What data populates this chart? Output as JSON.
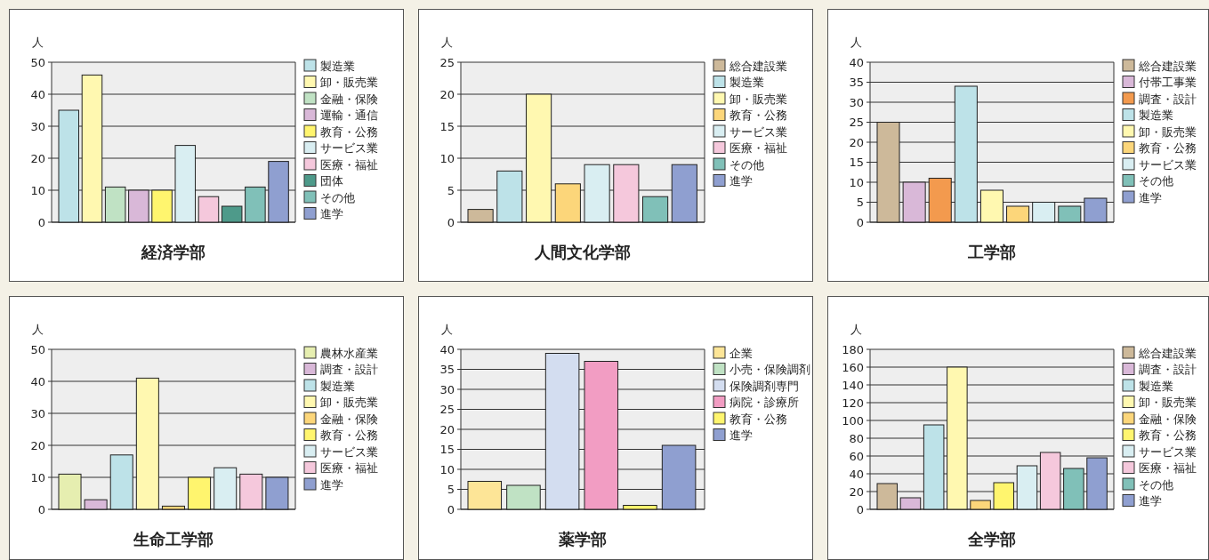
{
  "chart_data": [
    {
      "type": "bar",
      "title": "経済学部",
      "ylabel": "人",
      "stacked": true,
      "categories": [
        null,
        null,
        null,
        null,
        null,
        null,
        null,
        null,
        null,
        null
      ],
      "series": [
        {
          "name": "製造業",
          "color": "#bde2e8",
          "values": [
            35,
            null,
            null,
            null,
            null,
            null,
            null,
            null,
            null,
            null
          ]
        },
        {
          "name": "卸・販売業",
          "color": "#fff8b0",
          "values": [
            null,
            46,
            null,
            null,
            null,
            null,
            null,
            null,
            null,
            null
          ]
        },
        {
          "name": "金融・保険",
          "color": "#c0e2c4",
          "values": [
            null,
            null,
            11,
            null,
            null,
            null,
            null,
            null,
            null,
            null
          ]
        },
        {
          "name": "運輸・通信",
          "color": "#d9b8d8",
          "values": [
            null,
            null,
            null,
            10,
            null,
            null,
            null,
            null,
            null,
            null
          ]
        },
        {
          "name": "教育・公務",
          "color": "#fff56e",
          "values": [
            null,
            null,
            null,
            null,
            10,
            null,
            null,
            null,
            null,
            null
          ]
        },
        {
          "name": "サービス業",
          "color": "#d9eef2",
          "values": [
            null,
            null,
            null,
            null,
            null,
            24,
            null,
            null,
            null,
            null
          ]
        },
        {
          "name": "医療・福祉",
          "color": "#f5c8dc",
          "values": [
            null,
            null,
            null,
            null,
            null,
            null,
            8,
            null,
            null,
            null
          ]
        },
        {
          "name": "団体",
          "color": "#4e9a8a",
          "values": [
            null,
            null,
            null,
            null,
            null,
            null,
            null,
            5,
            null,
            null
          ]
        },
        {
          "name": "その他",
          "color": "#80c0b8",
          "values": [
            null,
            null,
            null,
            null,
            null,
            null,
            null,
            null,
            11,
            null
          ]
        },
        {
          "name": "進学",
          "color": "#8f9fd0",
          "values": [
            null,
            null,
            null,
            null,
            null,
            null,
            null,
            null,
            null,
            19
          ]
        }
      ],
      "ylim": [
        0,
        50
      ],
      "yticks": [
        0,
        10,
        20,
        30,
        40,
        50
      ],
      "grid": "y",
      "legend": "right",
      "tick_labels": "y"
    },
    {
      "type": "bar",
      "title": "人間文化学部",
      "ylabel": "人",
      "stacked": true,
      "categories": [
        null,
        null,
        null,
        null,
        null,
        null,
        null,
        null
      ],
      "series": [
        {
          "name": "総合建設業",
          "color": "#cdb99a",
          "values": [
            2,
            null,
            null,
            null,
            null,
            null,
            null,
            null
          ]
        },
        {
          "name": "製造業",
          "color": "#bde2e8",
          "values": [
            null,
            8,
            null,
            null,
            null,
            null,
            null,
            null
          ]
        },
        {
          "name": "卸・販売業",
          "color": "#fff8b0",
          "values": [
            null,
            null,
            20,
            null,
            null,
            null,
            null,
            null
          ]
        },
        {
          "name": "教育・公務",
          "color": "#fcd67a",
          "values": [
            null,
            null,
            null,
            6,
            null,
            null,
            null,
            null
          ]
        },
        {
          "name": "サービス業",
          "color": "#d9eef2",
          "values": [
            null,
            null,
            null,
            null,
            9,
            null,
            null,
            null
          ]
        },
        {
          "name": "医療・福祉",
          "color": "#f5c8dc",
          "values": [
            null,
            null,
            null,
            null,
            null,
            9,
            null,
            null
          ]
        },
        {
          "name": "その他",
          "color": "#80c0b8",
          "values": [
            null,
            null,
            null,
            null,
            null,
            null,
            4,
            null
          ]
        },
        {
          "name": "進学",
          "color": "#8f9fd0",
          "values": [
            null,
            null,
            null,
            null,
            null,
            null,
            null,
            9
          ]
        }
      ],
      "ylim": [
        0,
        25
      ],
      "yticks": [
        0,
        5,
        10,
        15,
        20,
        25
      ],
      "grid": "y",
      "legend": "right",
      "tick_labels": "y"
    },
    {
      "type": "bar",
      "title": "工学部",
      "ylabel": "人",
      "stacked": true,
      "categories": [
        null,
        null,
        null,
        null,
        null,
        null,
        null,
        null,
        null
      ],
      "series": [
        {
          "name": "総合建設業",
          "color": "#cdb99a",
          "values": [
            25,
            null,
            null,
            null,
            null,
            null,
            null,
            null,
            null
          ]
        },
        {
          "name": "付帯工事業",
          "color": "#d9b8d8",
          "values": [
            null,
            10,
            null,
            null,
            null,
            null,
            null,
            null,
            null
          ]
        },
        {
          "name": "調査・設計",
          "color": "#f39a4e",
          "values": [
            null,
            null,
            11,
            null,
            null,
            null,
            null,
            null,
            null
          ]
        },
        {
          "name": "製造業",
          "color": "#bde2e8",
          "values": [
            null,
            null,
            null,
            34,
            null,
            null,
            null,
            null,
            null
          ]
        },
        {
          "name": "卸・販売業",
          "color": "#fff8b0",
          "values": [
            null,
            null,
            null,
            null,
            8,
            null,
            null,
            null,
            null
          ]
        },
        {
          "name": "教育・公務",
          "color": "#fcd67a",
          "values": [
            null,
            null,
            null,
            null,
            null,
            4,
            null,
            null,
            null
          ]
        },
        {
          "name": "サービス業",
          "color": "#d9eef2",
          "values": [
            null,
            null,
            null,
            null,
            null,
            null,
            5,
            null,
            null
          ]
        },
        {
          "name": "その他",
          "color": "#80c0b8",
          "values": [
            null,
            null,
            null,
            null,
            null,
            null,
            null,
            4,
            null
          ]
        },
        {
          "name": "進学",
          "color": "#8f9fd0",
          "values": [
            null,
            null,
            null,
            null,
            null,
            null,
            null,
            null,
            6
          ]
        }
      ],
      "ylim": [
        0,
        40
      ],
      "yticks": [
        0,
        5,
        10,
        15,
        20,
        25,
        30,
        35,
        40
      ],
      "grid": "y",
      "legend": "right",
      "tick_labels": "y"
    },
    {
      "type": "bar",
      "title": "生命工学部",
      "ylabel": "人",
      "stacked": true,
      "categories": [
        null,
        null,
        null,
        null,
        null,
        null,
        null,
        null,
        null
      ],
      "series": [
        {
          "name": "農林水産業",
          "color": "#e6eeb0",
          "values": [
            11,
            null,
            null,
            null,
            null,
            null,
            null,
            null,
            null
          ]
        },
        {
          "name": "調査・設計",
          "color": "#d9b8d8",
          "values": [
            null,
            3,
            null,
            null,
            null,
            null,
            null,
            null,
            null
          ]
        },
        {
          "name": "製造業",
          "color": "#bde2e8",
          "values": [
            null,
            null,
            17,
            null,
            null,
            null,
            null,
            null,
            null
          ]
        },
        {
          "name": "卸・販売業",
          "color": "#fff8b0",
          "values": [
            null,
            null,
            null,
            41,
            null,
            null,
            null,
            null,
            null
          ]
        },
        {
          "name": "金融・保険",
          "color": "#fcd67a",
          "values": [
            null,
            null,
            null,
            null,
            1,
            null,
            null,
            null,
            null
          ]
        },
        {
          "name": "教育・公務",
          "color": "#fff56e",
          "values": [
            null,
            null,
            null,
            null,
            null,
            10,
            null,
            null,
            null
          ]
        },
        {
          "name": "サービス業",
          "color": "#d9eef2",
          "values": [
            null,
            null,
            null,
            null,
            null,
            null,
            13,
            null,
            null
          ]
        },
        {
          "name": "医療・福祉",
          "color": "#f5c8dc",
          "values": [
            null,
            null,
            null,
            null,
            null,
            null,
            null,
            11,
            null
          ]
        },
        {
          "name": "進学",
          "color": "#8f9fd0",
          "values": [
            null,
            null,
            null,
            null,
            null,
            null,
            null,
            null,
            10
          ]
        }
      ],
      "ylim": [
        0,
        50
      ],
      "yticks": [
        0,
        10,
        20,
        30,
        40,
        50
      ],
      "grid": "y",
      "legend": "right",
      "tick_labels": "y"
    },
    {
      "type": "bar",
      "title": "薬学部",
      "ylabel": "人",
      "stacked": true,
      "categories": [
        null,
        null,
        null,
        null,
        null,
        null
      ],
      "series": [
        {
          "name": "企業",
          "color": "#fde597",
          "values": [
            7,
            null,
            null,
            null,
            null,
            null
          ]
        },
        {
          "name": "小売・保険調剤",
          "color": "#c0e2c4",
          "values": [
            null,
            6,
            null,
            null,
            null,
            null
          ]
        },
        {
          "name": "保険調剤専門",
          "color": "#d3ddf0",
          "values": [
            null,
            null,
            39,
            null,
            null,
            null
          ]
        },
        {
          "name": "病院・診療所",
          "color": "#f29dc3",
          "values": [
            null,
            null,
            null,
            37,
            null,
            null
          ]
        },
        {
          "name": "教育・公務",
          "color": "#fff56e",
          "values": [
            null,
            null,
            null,
            null,
            1,
            null
          ]
        },
        {
          "name": "進学",
          "color": "#8f9fd0",
          "values": [
            null,
            null,
            null,
            null,
            null,
            16
          ]
        }
      ],
      "ylim": [
        0,
        40
      ],
      "yticks": [
        0,
        5,
        10,
        15,
        20,
        25,
        30,
        35,
        40
      ],
      "grid": "y",
      "legend": "right",
      "tick_labels": "y"
    },
    {
      "type": "bar",
      "title": "全学部",
      "ylabel": "人",
      "stacked": true,
      "categories": [
        null,
        null,
        null,
        null,
        null,
        null,
        null,
        null,
        null,
        null
      ],
      "series": [
        {
          "name": "総合建設業",
          "color": "#cdb99a",
          "values": [
            29,
            null,
            null,
            null,
            null,
            null,
            null,
            null,
            null,
            null
          ]
        },
        {
          "name": "調査・設計",
          "color": "#d9b8d8",
          "values": [
            null,
            13,
            null,
            null,
            null,
            null,
            null,
            null,
            null,
            null
          ]
        },
        {
          "name": "製造業",
          "color": "#bde2e8",
          "values": [
            null,
            null,
            95,
            null,
            null,
            null,
            null,
            null,
            null,
            null
          ]
        },
        {
          "name": "卸・販売業",
          "color": "#fff8b0",
          "values": [
            null,
            null,
            null,
            160,
            null,
            null,
            null,
            null,
            null,
            null
          ]
        },
        {
          "name": "金融・保険",
          "color": "#fcd67a",
          "values": [
            null,
            null,
            null,
            null,
            10,
            null,
            null,
            null,
            null,
            null
          ]
        },
        {
          "name": "教育・公務",
          "color": "#fff56e",
          "values": [
            null,
            null,
            null,
            null,
            null,
            30,
            null,
            null,
            null,
            null
          ]
        },
        {
          "name": "サービス業",
          "color": "#d9eef2",
          "values": [
            null,
            null,
            null,
            null,
            null,
            null,
            49,
            null,
            null,
            null
          ]
        },
        {
          "name": "医療・福祉",
          "color": "#f5c8dc",
          "values": [
            null,
            null,
            null,
            null,
            null,
            null,
            null,
            64,
            null,
            null
          ]
        },
        {
          "name": "その他",
          "color": "#80c0b8",
          "values": [
            null,
            null,
            null,
            null,
            null,
            null,
            null,
            null,
            46,
            null
          ]
        },
        {
          "name": "進学",
          "color": "#8f9fd0",
          "values": [
            null,
            null,
            null,
            null,
            null,
            null,
            null,
            null,
            null,
            58
          ]
        }
      ],
      "ylim": [
        0,
        180
      ],
      "yticks": [
        0,
        20,
        40,
        60,
        80,
        100,
        120,
        140,
        160,
        180
      ],
      "grid": "y",
      "legend": "right",
      "tick_labels": "y"
    }
  ]
}
